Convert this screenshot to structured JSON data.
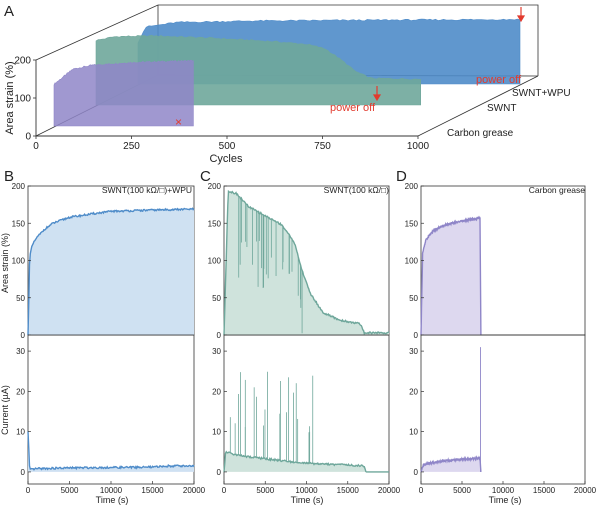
{
  "colors": {
    "swnt_wpu": "#4f8cc9",
    "swnt_wpu_fill": "#cfe1f2",
    "swnt": "#6fa79b",
    "swnt_fill": "#cfe3dc",
    "grease": "#8f86c8",
    "grease_fill": "#ddd8ef",
    "red": "#e23b2e",
    "axis": "#333333"
  },
  "chart_data": [
    {
      "id": "A",
      "panel_label": "A",
      "type": "area",
      "title": "",
      "xlabel": "Cycles",
      "ylabel": "Area strain (%)",
      "xlim": [
        0,
        1000
      ],
      "ylim": [
        0,
        200
      ],
      "x_ticks": [
        0,
        250,
        500,
        750,
        1000
      ],
      "y_ticks": [
        0,
        100,
        200
      ],
      "depth_labels": [
        "Carbon grease",
        "SWNT",
        "SWNT+WPU"
      ],
      "annotations": [
        "power off",
        "power off"
      ],
      "failure_marker": "×",
      "series": [
        {
          "name": "Carbon grease",
          "color_key": "grease",
          "end_cycle": 365,
          "x": [
            0,
            50,
            100,
            200,
            300,
            365
          ],
          "y": [
            110,
            150,
            160,
            167,
            170,
            172
          ]
        },
        {
          "name": "SWNT",
          "color_key": "swnt",
          "end_cycle": 850,
          "x": [
            0,
            50,
            150,
            300,
            450,
            550,
            600,
            640,
            680,
            720,
            850
          ],
          "y": [
            170,
            180,
            182,
            176,
            168,
            160,
            148,
            120,
            88,
            70,
            68
          ]
        },
        {
          "name": "SWNT+WPU",
          "color_key": "swnt_wpu",
          "end_cycle": 1000,
          "x": [
            0,
            20,
            100,
            300,
            600,
            1000
          ],
          "y": [
            110,
            150,
            162,
            166,
            168,
            170
          ]
        }
      ]
    },
    {
      "id": "B",
      "panel_label": "B",
      "type": "area",
      "title": "SWNT(100 kΩ/□)+WPU",
      "xlabel": "Time (s)",
      "ylabel_top": "Area strain (%)",
      "ylabel_bottom": "Current (µA)",
      "xlim": [
        0,
        20000
      ],
      "x_ticks": [
        0,
        5000,
        10000,
        15000,
        20000
      ],
      "strain_ylim": [
        0,
        200
      ],
      "strain_ticks": [
        0,
        50,
        100,
        150,
        200
      ],
      "current_ylim": [
        -3,
        34
      ],
      "current_ticks": [
        0,
        10,
        20,
        30
      ],
      "strain": {
        "x": [
          0,
          200,
          500,
          1000,
          2000,
          3000,
          5000,
          8000,
          10000,
          13000,
          16000,
          20000
        ],
        "y": [
          0,
          105,
          120,
          130,
          142,
          150,
          158,
          163,
          166,
          167,
          168,
          169
        ]
      },
      "current": {
        "x": [
          0,
          200,
          1000,
          5000,
          10000,
          15000,
          17000,
          20000
        ],
        "y": [
          10,
          0.5,
          0.8,
          1.0,
          1.1,
          1.2,
          1.5,
          1.5
        ]
      }
    },
    {
      "id": "C",
      "panel_label": "C",
      "type": "area",
      "title": "SWNT(100 kΩ/□)",
      "xlabel": "Time (s)",
      "xlim": [
        0,
        20000
      ],
      "x_ticks": [
        0,
        5000,
        10000,
        15000,
        20000
      ],
      "strain_ylim": [
        0,
        200
      ],
      "strain_ticks": [
        0,
        50,
        100,
        150,
        200
      ],
      "current_ylim": [
        -3,
        34
      ],
      "current_ticks": [
        0,
        10,
        20,
        30
      ],
      "strain": {
        "x": [
          0,
          500,
          1500,
          3000,
          5000,
          7000,
          8500,
          9500,
          10500,
          12000,
          14000,
          16500,
          17000,
          20000
        ],
        "y": [
          0,
          193,
          190,
          172,
          160,
          148,
          125,
          85,
          55,
          30,
          20,
          15,
          3,
          3
        ]
      },
      "current": {
        "x": [
          0,
          200,
          1000,
          2000,
          4000,
          7000,
          9000,
          11000,
          14000,
          17000,
          17200,
          20000
        ],
        "y": [
          0,
          5,
          4.5,
          4,
          3.5,
          2.8,
          2.3,
          2,
          1.8,
          1.5,
          0,
          0
        ]
      }
    },
    {
      "id": "D",
      "panel_label": "D",
      "type": "area",
      "title": "Carbon grease",
      "xlabel": "Time (s)",
      "xlim": [
        0,
        20000
      ],
      "x_ticks": [
        0,
        5000,
        10000,
        15000,
        20000
      ],
      "strain_ylim": [
        0,
        200
      ],
      "strain_ticks": [
        0,
        50,
        100,
        150,
        200
      ],
      "current_ylim": [
        -3,
        34
      ],
      "current_ticks": [
        0,
        10,
        20,
        30
      ],
      "strain": {
        "x": [
          0,
          200,
          600,
          1500,
          3000,
          5000,
          7200,
          7300
        ],
        "y": [
          0,
          110,
          128,
          140,
          148,
          153,
          157,
          0
        ]
      },
      "current": {
        "x": [
          0,
          300,
          1500,
          3000,
          5000,
          7200,
          7300
        ],
        "y": [
          0,
          1.8,
          2.3,
          2.8,
          3.1,
          3.4,
          0
        ]
      }
    }
  ]
}
